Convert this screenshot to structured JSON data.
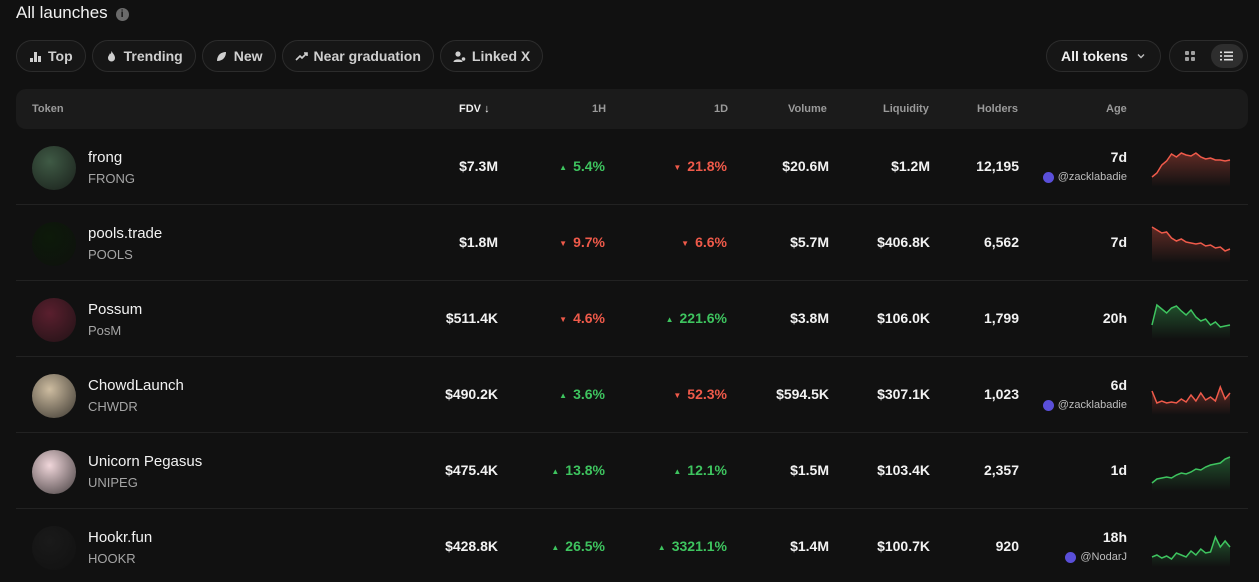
{
  "header": {
    "title": "All launches",
    "info_icon": "i"
  },
  "filters": [
    {
      "label": "Top",
      "icon": "bar-chart-icon"
    },
    {
      "label": "Trending",
      "icon": "flame-icon"
    },
    {
      "label": "New",
      "icon": "leaf-icon"
    },
    {
      "label": "Near graduation",
      "icon": "trend-up-icon"
    },
    {
      "label": "Linked X",
      "icon": "user-link-icon"
    }
  ],
  "token_select": {
    "label": "All tokens"
  },
  "view_toggle": {
    "grid_icon": "grid-icon",
    "list_icon": "list-icon",
    "active": "list"
  },
  "table": {
    "columns": {
      "token": "Token",
      "fdv": "FDV",
      "h1": "1H",
      "d1": "1D",
      "volume": "Volume",
      "liquidity": "Liquidity",
      "holders": "Holders",
      "age": "Age"
    },
    "rows": [
      {
        "name": "frong",
        "symbol": "FRONG",
        "fdv": "$7.3M",
        "h1": "5.4%",
        "h1_dir": "up",
        "d1": "21.8%",
        "d1_dir": "down",
        "volume": "$20.6M",
        "liquidity": "$1.2M",
        "holders": "12,195",
        "age": "7d",
        "creator": "@zacklabadie",
        "avatar_color": "#3f5a45",
        "spark_color": "#ef5a4a",
        "spark": [
          10,
          14,
          22,
          26,
          33,
          30,
          34,
          32,
          31,
          34,
          30,
          28,
          29,
          27,
          27,
          26,
          27
        ]
      },
      {
        "name": "pools.trade",
        "symbol": "POOLS",
        "fdv": "$1.8M",
        "h1": "9.7%",
        "h1_dir": "down",
        "d1": "6.6%",
        "d1_dir": "down",
        "volume": "$5.7M",
        "liquidity": "$406.8K",
        "holders": "6,562",
        "age": "7d",
        "creator": "",
        "avatar_color": "#0d1a0a",
        "spark_color": "#ef5a4a",
        "spark": [
          36,
          33,
          30,
          31,
          25,
          22,
          24,
          21,
          20,
          19,
          20,
          17,
          18,
          15,
          16,
          12,
          14
        ]
      },
      {
        "name": "Possum",
        "symbol": "PosM",
        "fdv": "$511.4K",
        "h1": "4.6%",
        "h1_dir": "down",
        "d1": "221.6%",
        "d1_dir": "up",
        "volume": "$3.8M",
        "liquidity": "$106.0K",
        "holders": "1,799",
        "age": "20h",
        "creator": "",
        "avatar_color": "#5a1f2e",
        "spark_color": "#3ec45f",
        "spark": [
          14,
          34,
          30,
          26,
          31,
          33,
          28,
          24,
          29,
          22,
          18,
          20,
          14,
          17,
          12,
          13,
          14
        ]
      },
      {
        "name": "ChowdLaunch",
        "symbol": "CHWDR",
        "fdv": "$490.2K",
        "h1": "3.6%",
        "h1_dir": "up",
        "d1": "52.3%",
        "d1_dir": "down",
        "volume": "$594.5K",
        "liquidity": "$307.1K",
        "holders": "1,023",
        "age": "6d",
        "creator": "@zacklabadie",
        "avatar_color": "#cdbca0",
        "spark_color": "#ef5a4a",
        "spark": [
          24,
          12,
          14,
          12,
          13,
          12,
          16,
          13,
          20,
          14,
          22,
          15,
          18,
          14,
          28,
          16,
          22
        ]
      },
      {
        "name": "Unicorn Pegasus",
        "symbol": "UNIPEG",
        "fdv": "$475.4K",
        "h1": "13.8%",
        "h1_dir": "up",
        "d1": "12.1%",
        "d1_dir": "up",
        "volume": "$1.5M",
        "liquidity": "$103.4K",
        "holders": "2,357",
        "age": "1d",
        "creator": "",
        "avatar_color": "#f0d6da",
        "spark_color": "#3ec45f",
        "spark": [
          8,
          12,
          13,
          14,
          13,
          16,
          18,
          17,
          19,
          22,
          21,
          24,
          26,
          27,
          28,
          32,
          34
        ]
      },
      {
        "name": "Hookr.fun",
        "symbol": "HOOKR",
        "fdv": "$428.8K",
        "h1": "26.5%",
        "h1_dir": "up",
        "d1": "3321.1%",
        "d1_dir": "up",
        "volume": "$1.4M",
        "liquidity": "$100.7K",
        "holders": "920",
        "age": "18h",
        "creator": "@NodarJ",
        "avatar_color": "#1a1a1a",
        "spark_color": "#3ec45f",
        "spark": [
          10,
          12,
          9,
          11,
          8,
          14,
          12,
          10,
          16,
          12,
          18,
          14,
          15,
          30,
          20,
          26,
          20
        ]
      }
    ]
  }
}
